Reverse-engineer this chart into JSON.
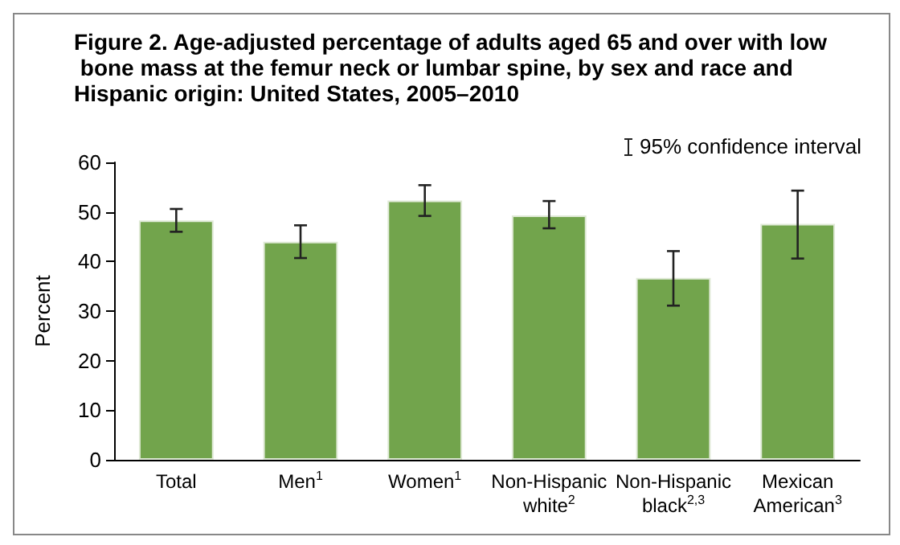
{
  "chart_data": {
    "type": "bar",
    "title": "Figure 2. Age-adjusted percentage of adults aged 65 and over with low bone mass at the femur neck or lumbar spine, by sex and race and Hispanic origin: United States, 2005–2010",
    "ylabel": "Percent",
    "categories": [
      "Total",
      "Men$^{1}$",
      "Women$^{1}$",
      "Non-Hispanic white$^{2}$",
      "Non-Hispanic black$^{2,3}$",
      "Mexican American$^{3}$"
    ],
    "values": [
      48.3,
      44.0,
      52.3,
      49.3,
      36.7,
      47.6
    ],
    "errors": [
      [
        46.0,
        50.6
      ],
      [
        40.7,
        47.3
      ],
      [
        49.2,
        55.4
      ],
      [
        46.7,
        52.2
      ],
      [
        31.1,
        42.1
      ],
      [
        40.6,
        54.3
      ]
    ],
    "color": "#72a44c",
    "ylim": [
      0,
      60
    ],
    "yticks": [
      0,
      10,
      20,
      30,
      40,
      50,
      60
    ],
    "grid": false,
    "annotations": [
      "95% confidence interval"
    ]
  }
}
